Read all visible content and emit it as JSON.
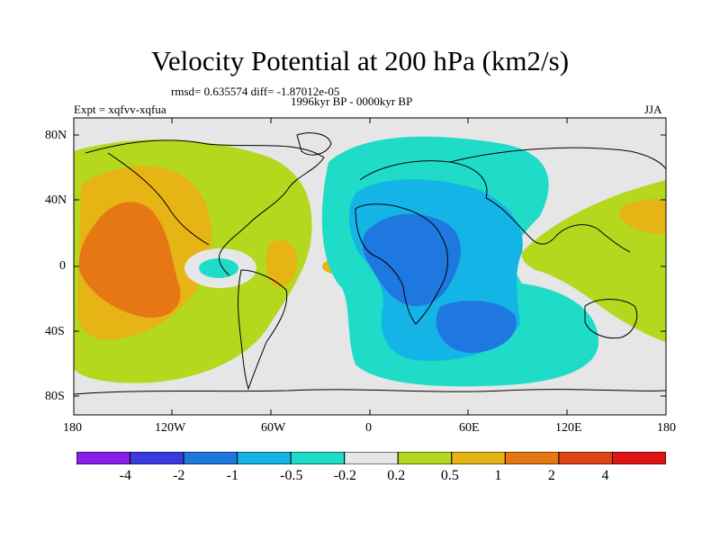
{
  "title": "Velocity Potential at 200 hPa (km2/s)",
  "stats": "rmsd= 0.635574 diff= -1.87012e-05",
  "period": "1996kyr BP - 0000kyr BP",
  "experiment": "Expt = xqfvv-xqfua",
  "season": "JJA",
  "lat_labels": [
    "80N",
    "40N",
    "0",
    "40S",
    "80S"
  ],
  "lon_labels": [
    "180",
    "120W",
    "60W",
    "0",
    "60E",
    "120E",
    "180"
  ],
  "colorbar": {
    "colors": [
      "#8a1ee8",
      "#3a3ae0",
      "#1e78e0",
      "#14b4e6",
      "#1edcc8",
      "#e6e6e6",
      "#b4d81e",
      "#e6b414",
      "#e67814",
      "#e04614",
      "#e01414"
    ],
    "labels": [
      "-4",
      "-2",
      "-1",
      "-0.5",
      "-0.2",
      "0.2",
      "0.5",
      "1",
      "2",
      "4"
    ]
  }
}
